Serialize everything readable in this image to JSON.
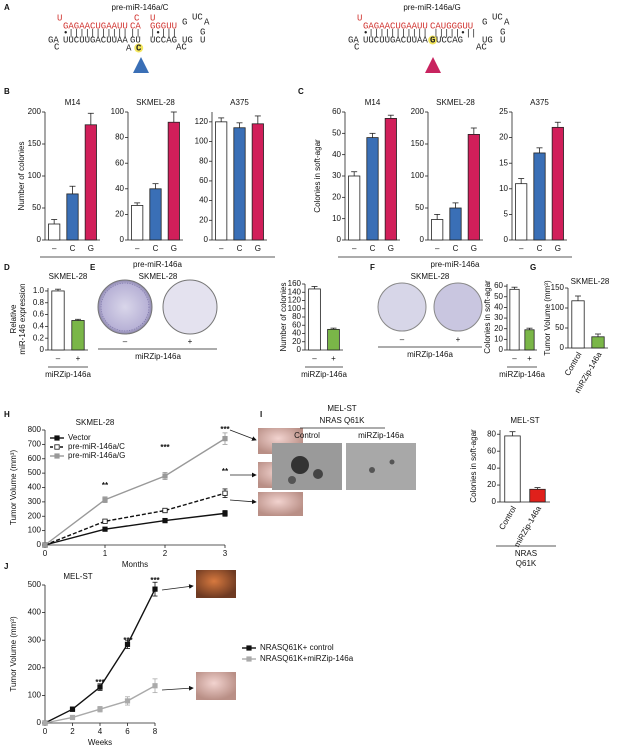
{
  "panel_labels": [
    "A",
    "B",
    "C",
    "D",
    "E",
    "F",
    "G",
    "H",
    "I",
    "J"
  ],
  "structures": [
    {
      "title": "pre-miR-146a/C",
      "segments": [
        {
          "text": "U",
          "color": "#d0312d"
        },
        {
          "text": "C",
          "color": "#d0312d"
        },
        {
          "text": "U",
          "color": "#d0312d"
        },
        {
          "text": "GAGAACUGAAUU",
          "color": "#d0312d"
        },
        {
          "text": "CA",
          "color": "#d0312d"
        },
        {
          "text": "GGGUU",
          "color": "#d0312d"
        },
        {
          "text": "G",
          "color": "#222222"
        },
        {
          "text": "UC",
          "color": "#222222"
        },
        {
          "text": "A",
          "color": "#222222"
        },
        {
          "text": "•|||||||||||",
          "color": "#222222"
        },
        {
          "text": "||",
          "color": "#222222"
        },
        {
          "text": "|•|||",
          "color": "#222222"
        },
        {
          "text": "G",
          "color": "#222222"
        },
        {
          "text": "GA",
          "color": "#222222"
        },
        {
          "text": "UUCUUGACUUAA",
          "color": "#222222"
        },
        {
          "text": "GU",
          "color": "#222222"
        },
        {
          "text": "UCCAG",
          "color": "#222222"
        },
        {
          "text": "UG",
          "color": "#222222"
        },
        {
          "text": "C",
          "color": "#222222"
        },
        {
          "text": "A",
          "color": "#222222"
        },
        {
          "text": "C",
          "color": "#222222",
          "highlight": "#f3e65c"
        },
        {
          "text": "AC",
          "color": "#222222"
        },
        {
          "text": "U",
          "color": "#222222"
        }
      ]
    },
    {
      "title": "pre-miR-146a/G",
      "segments": [
        {
          "text": "U",
          "color": "#d0312d"
        },
        {
          "text": "GAGAACUGAAUU",
          "color": "#d0312d"
        },
        {
          "text": "CAUGGGUU",
          "color": "#d0312d"
        },
        {
          "text": "G",
          "color": "#222222"
        },
        {
          "text": "UC",
          "color": "#222222"
        },
        {
          "text": "A",
          "color": "#222222"
        },
        {
          "text": "•||||||||||| |||||•||",
          "color": "#222222"
        },
        {
          "text": "G",
          "color": "#222222"
        },
        {
          "text": "GA",
          "color": "#222222"
        },
        {
          "text": "UUCUUGACUUAA",
          "color": "#222222"
        },
        {
          "text": "G",
          "color": "#222222",
          "highlight": "#f3e65c"
        },
        {
          "text": "UCCAG",
          "color": "#222222"
        },
        {
          "text": "UG",
          "color": "#222222"
        },
        {
          "text": "C",
          "color": "#222222"
        },
        {
          "text": "AC",
          "color": "#222222"
        },
        {
          "text": "U",
          "color": "#222222"
        }
      ]
    }
  ],
  "photos": [
    {
      "title": "SKMEL-28",
      "labels": [
        "–",
        "+"
      ],
      "xlabel": "miRZip-146a"
    },
    {
      "title": "SKMEL-28",
      "labels": [
        "–",
        "+"
      ],
      "xlabel": "miRZip-146a"
    },
    {
      "title": "MEL-ST",
      "subtitle": "NRAS Q61K",
      "labels": [
        "Control",
        "miRZip-146a"
      ]
    }
  ],
  "chart_data": [
    {
      "type": "bar",
      "title": "M14",
      "ylabel": "Number of colonies",
      "categories": [
        "–",
        "C",
        "G"
      ],
      "values": [
        25,
        72,
        180
      ],
      "errors": [
        7,
        12,
        18
      ],
      "colors": [
        "#ffffff",
        "#3a6fb6",
        "#d11f5a"
      ],
      "ylim": [
        0,
        200
      ],
      "yticks": [
        0,
        50,
        100,
        150,
        200
      ]
    },
    {
      "type": "bar",
      "title": "SKMEL-28",
      "xlabel": "pre-miR-146a",
      "categories": [
        "–",
        "C",
        "G"
      ],
      "values": [
        27,
        40,
        92
      ],
      "errors": [
        2,
        4,
        8
      ],
      "colors": [
        "#ffffff",
        "#3a6fb6",
        "#d11f5a"
      ],
      "ylim": [
        0,
        100
      ],
      "yticks": [
        0,
        20,
        40,
        60,
        80,
        100
      ]
    },
    {
      "type": "bar",
      "title": "A375",
      "categories": [
        "–",
        "C",
        "G"
      ],
      "values": [
        120,
        114,
        118
      ],
      "errors": [
        4,
        5,
        8
      ],
      "colors": [
        "#ffffff",
        "#3a6fb6",
        "#d11f5a"
      ],
      "ylim": [
        0,
        130
      ],
      "yticks": [
        0,
        20,
        40,
        60,
        80,
        100,
        120
      ]
    },
    {
      "type": "bar",
      "title": "M14",
      "ylabel": "Colonies in soft-agar",
      "categories": [
        "–",
        "C",
        "G"
      ],
      "values": [
        30,
        48,
        57
      ],
      "errors": [
        2,
        2,
        1.5
      ],
      "colors": [
        "#ffffff",
        "#3a6fb6",
        "#d11f5a"
      ],
      "ylim": [
        0,
        60
      ],
      "yticks": [
        0,
        10,
        20,
        30,
        40,
        50,
        60
      ]
    },
    {
      "type": "bar",
      "title": "SKMEL-28",
      "xlabel": "pre-miR-146a",
      "categories": [
        "–",
        "C",
        "G"
      ],
      "values": [
        32,
        50,
        165
      ],
      "errors": [
        8,
        8,
        10
      ],
      "colors": [
        "#ffffff",
        "#3a6fb6",
        "#d11f5a"
      ],
      "ylim": [
        0,
        200
      ],
      "yticks": [
        0,
        50,
        100,
        150,
        200
      ]
    },
    {
      "type": "bar",
      "title": "A375",
      "categories": [
        "–",
        "C",
        "G"
      ],
      "values": [
        11,
        17,
        22
      ],
      "errors": [
        1,
        1,
        1
      ],
      "colors": [
        "#ffffff",
        "#3a6fb6",
        "#d11f5a"
      ],
      "ylim": [
        0,
        25
      ],
      "yticks": [
        0,
        5,
        10,
        15,
        20,
        25
      ]
    },
    {
      "type": "bar",
      "title": "SKMEL-28",
      "ylabel": [
        "Relative",
        "miR-146 expression"
      ],
      "xlabel": "miRZip-146a",
      "categories": [
        "–",
        "+"
      ],
      "values": [
        1.0,
        0.5
      ],
      "errors": [
        0.03,
        0.02
      ],
      "colors": [
        "#ffffff",
        "#7ab648"
      ],
      "ylim": [
        0,
        1.05
      ],
      "yticks": [
        0,
        0.2,
        0.4,
        0.6,
        0.8,
        {
          "value": 1,
          "label": "1.0"
        }
      ]
    },
    {
      "type": "bar",
      "ylabel": "Number of colonies",
      "xlabel": "miRZip-146a",
      "categories": [
        "–",
        "+"
      ],
      "values": [
        148,
        50
      ],
      "errors": [
        6,
        3
      ],
      "colors": [
        "#ffffff",
        "#7ab648"
      ],
      "ylim": [
        0,
        160
      ],
      "yticks": [
        0,
        20,
        40,
        60,
        80,
        100,
        120,
        140,
        160
      ]
    },
    {
      "type": "bar",
      "ylabel": "Colonies in soft-agar",
      "xlabel": "miRZip-146a",
      "categories": [
        "–",
        "+"
      ],
      "values": [
        57,
        19
      ],
      "errors": [
        2,
        1.5
      ],
      "colors": [
        "#ffffff",
        "#7ab648"
      ],
      "ylim": [
        0,
        62
      ],
      "yticks": [
        0,
        10,
        20,
        30,
        40,
        50,
        60
      ]
    },
    {
      "type": "bar",
      "title": "SKMEL-28",
      "ylabel": "Tumor Volume (mm³)",
      "categories": [
        "Control",
        "miRZip-146a"
      ],
      "values": [
        118,
        28
      ],
      "errors": [
        12,
        7
      ],
      "colors": [
        "#ffffff",
        "#7ab648"
      ],
      "ylim": [
        0,
        150
      ],
      "yticks": [
        0,
        50,
        100,
        150
      ],
      "rotate_labels": true
    },
    {
      "type": "line",
      "title": "SKMEL-28",
      "xlabel": "Months",
      "ylabel": "Tumor Volume (mm³)",
      "x": [
        0,
        1,
        2,
        3
      ],
      "xlim": [
        0,
        3
      ],
      "xticks": [
        0,
        1,
        2,
        3
      ],
      "ylim": [
        0,
        800
      ],
      "yticks": [
        0,
        100,
        200,
        300,
        400,
        500,
        600,
        700,
        800
      ],
      "series": [
        {
          "name": "Vector",
          "color": "#111111",
          "marker_fill": "#111111",
          "dashed": false,
          "values": [
            0,
            110,
            170,
            220
          ],
          "errors": [
            0,
            10,
            15,
            20
          ]
        },
        {
          "name": "pre-miR-146a/C",
          "color": "#111111",
          "marker_fill": "#ffffff",
          "dashed": true,
          "values": [
            0,
            165,
            240,
            360
          ],
          "errors": [
            0,
            12,
            15,
            30
          ]
        },
        {
          "name": "pre-miR-146a/G",
          "color": "#999999",
          "marker_fill": "#999999",
          "dashed": false,
          "values": [
            0,
            315,
            480,
            740
          ],
          "errors": [
            0,
            20,
            25,
            40
          ]
        }
      ],
      "annotations": [
        "**",
        "***",
        "***",
        "**"
      ]
    },
    {
      "type": "bar",
      "title": "MEL-ST",
      "ylabel": "Colonies in soft-agar",
      "xlabel": [
        "NRAS",
        "Q61K"
      ],
      "categories": [
        "Control",
        "miRZip-146a"
      ],
      "values": [
        78,
        15
      ],
      "errors": [
        5,
        2
      ],
      "colors": [
        "#ffffff",
        "#e0201b"
      ],
      "ylim": [
        0,
        85
      ],
      "yticks": [
        0,
        20,
        40,
        60,
        80
      ],
      "rotate_labels": true
    },
    {
      "type": "line",
      "title": "MEL-ST",
      "xlabel": "Weeks",
      "ylabel": "Tumor Volume (mm³)",
      "x": [
        0,
        2,
        4,
        6,
        8
      ],
      "xlim": [
        0,
        8
      ],
      "xticks": [
        0,
        2,
        4,
        6,
        8
      ],
      "ylim": [
        0,
        500
      ],
      "yticks": [
        0,
        100,
        200,
        300,
        400,
        500
      ],
      "series": [
        {
          "name": "NRASQ61K+ control",
          "color": "#111111",
          "marker_fill": "#111111",
          "dashed": false,
          "values": [
            0,
            50,
            130,
            285,
            485
          ],
          "errors": [
            0,
            8,
            12,
            15,
            25
          ]
        },
        {
          "name": "NRASQ61K+miRZip-146a",
          "color": "#aaaaaa",
          "marker_fill": "#aaaaaa",
          "dashed": false,
          "values": [
            0,
            20,
            50,
            80,
            135
          ],
          "errors": [
            0,
            5,
            10,
            15,
            25
          ]
        }
      ],
      "annotations": [
        "***",
        "***",
        "***"
      ]
    }
  ]
}
